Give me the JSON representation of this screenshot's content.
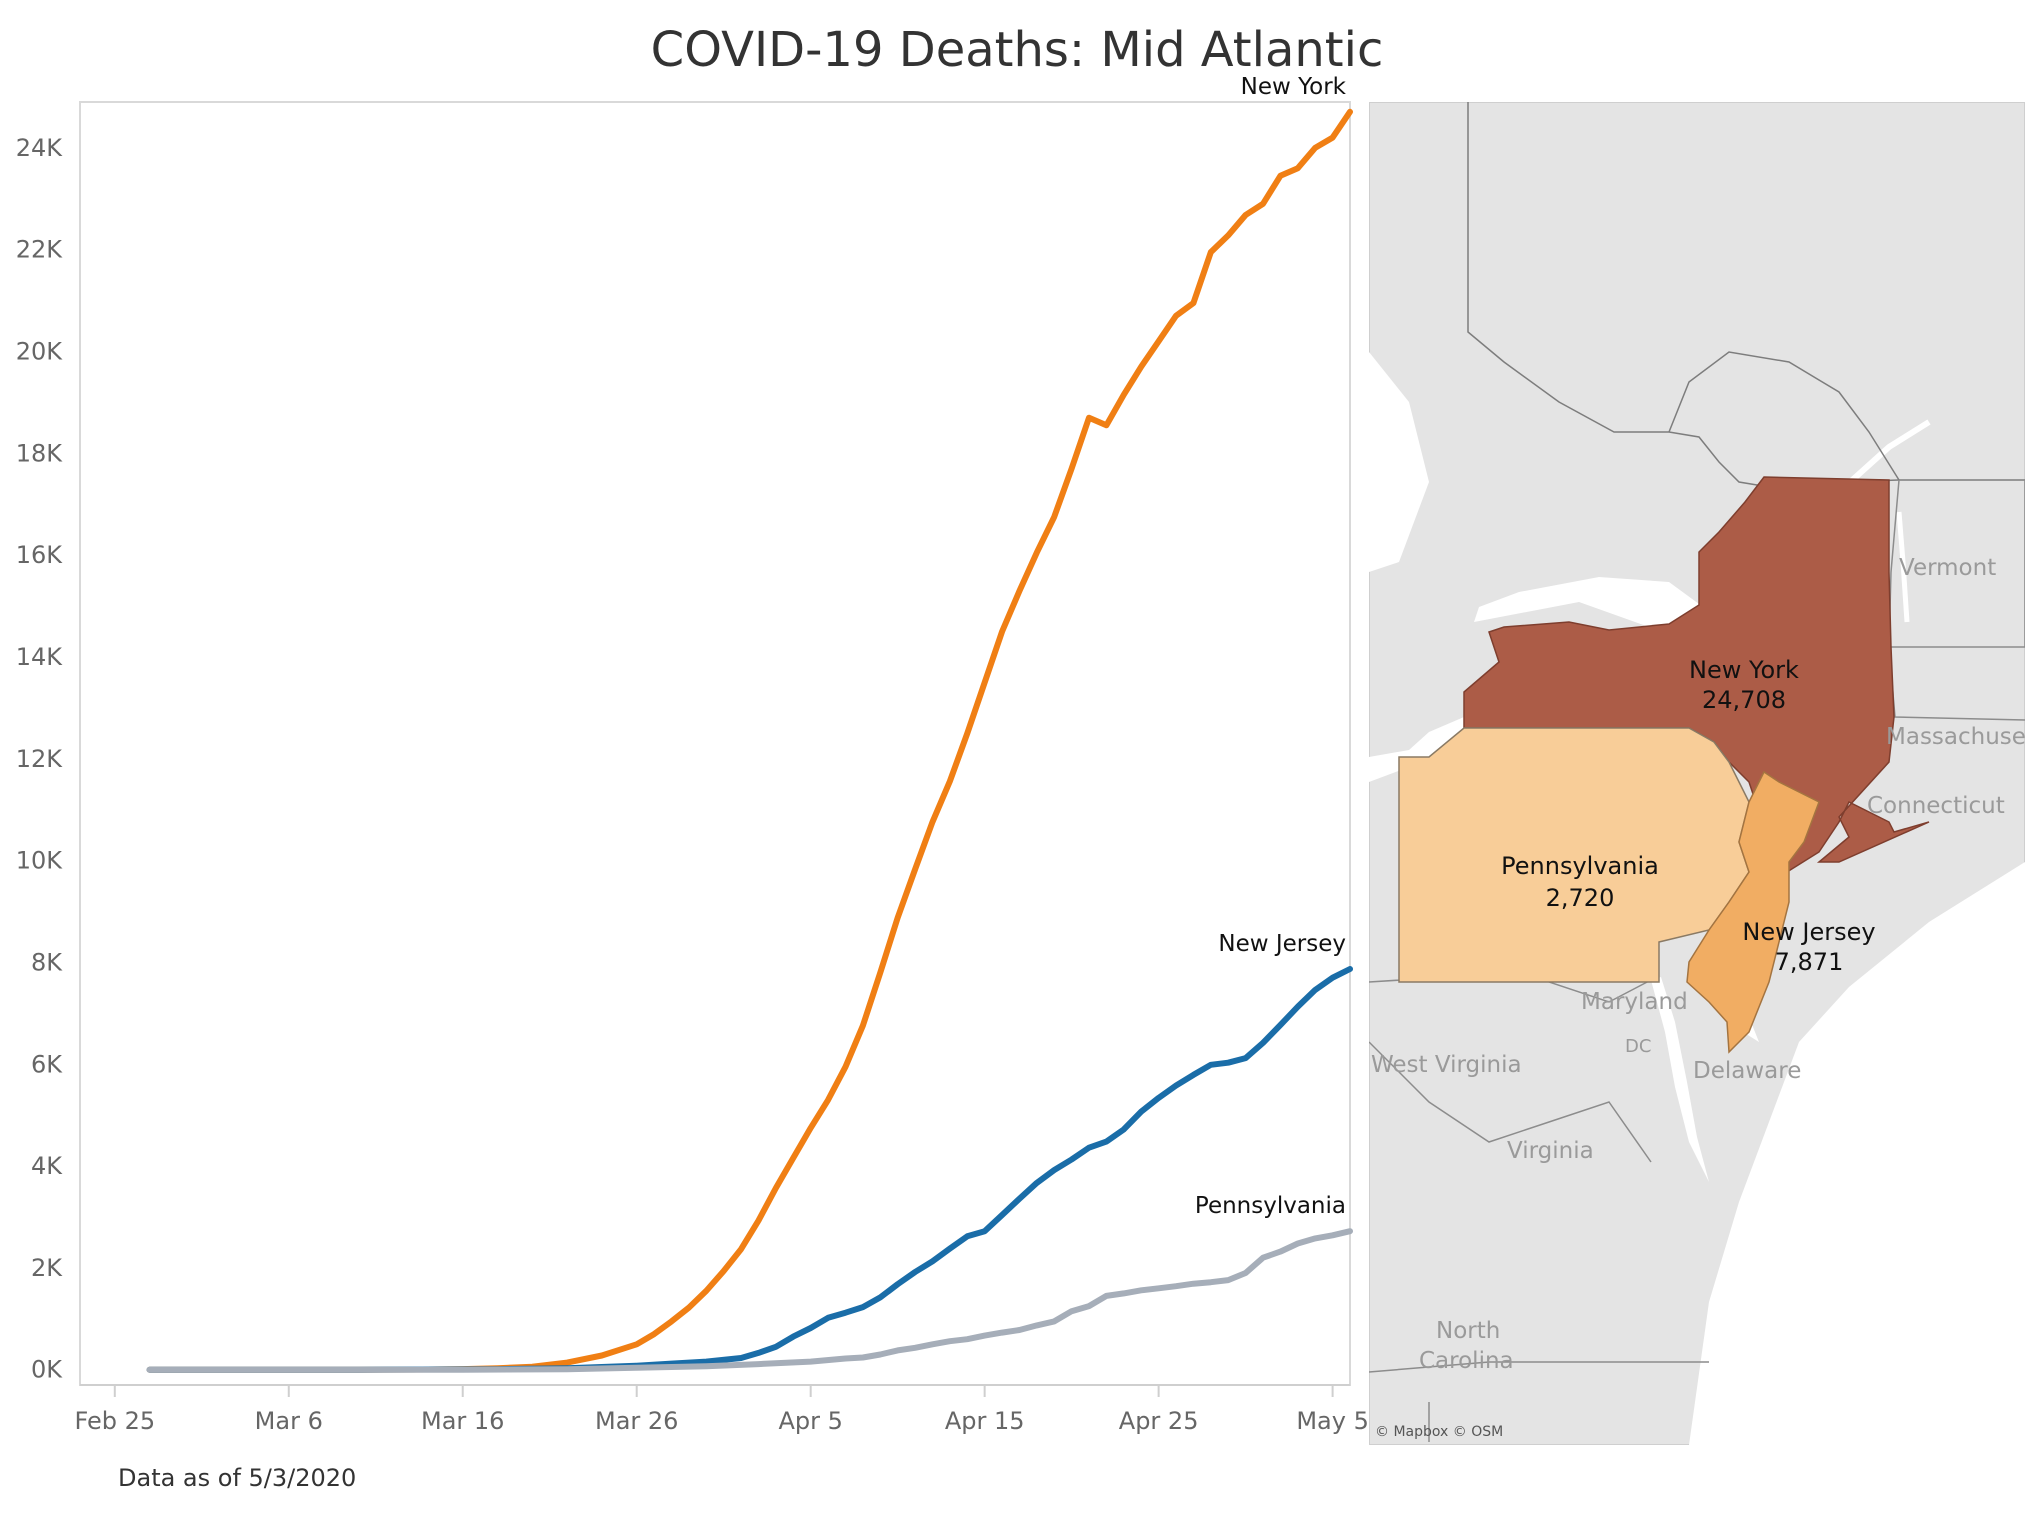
{
  "title": "COVID-19 Deaths: Mid Atlantic",
  "footnote": "Data as of 5/3/2020",
  "colors": {
    "new_york": "#f07f14",
    "new_jersey": "#1a6da8",
    "pennsylvania": "#a6aeb9",
    "map_new_york": "#ac5c47",
    "map_new_jersey": "#f1ad63",
    "map_pennsylvania": "#f8cd98",
    "map_background": "#e4e4e4",
    "map_water": "#ffffff"
  },
  "chart_data": {
    "type": "line",
    "title": "COVID-19 Deaths: Mid Atlantic",
    "xlabel": "",
    "ylabel": "",
    "x_domain": [
      "2020-02-23",
      "2020-05-06"
    ],
    "ylim": [
      -300,
      24900
    ],
    "grid": false,
    "x_ticks": [
      {
        "date": "2020-02-25",
        "label": "Feb 25"
      },
      {
        "date": "2020-03-06",
        "label": "Mar 6"
      },
      {
        "date": "2020-03-16",
        "label": "Mar 16"
      },
      {
        "date": "2020-03-26",
        "label": "Mar 26"
      },
      {
        "date": "2020-04-05",
        "label": "Apr 5"
      },
      {
        "date": "2020-04-15",
        "label": "Apr 15"
      },
      {
        "date": "2020-04-25",
        "label": "Apr 25"
      },
      {
        "date": "2020-05-05",
        "label": "May 5"
      }
    ],
    "y_ticks": [
      {
        "value": 0,
        "label": "0K"
      },
      {
        "value": 2000,
        "label": "2K"
      },
      {
        "value": 4000,
        "label": "4K"
      },
      {
        "value": 6000,
        "label": "6K"
      },
      {
        "value": 8000,
        "label": "8K"
      },
      {
        "value": 10000,
        "label": "10K"
      },
      {
        "value": 12000,
        "label": "12K"
      },
      {
        "value": 14000,
        "label": "14K"
      },
      {
        "value": 16000,
        "label": "16K"
      },
      {
        "value": 18000,
        "label": "18K"
      },
      {
        "value": 20000,
        "label": "20K"
      },
      {
        "value": 22000,
        "label": "22K"
      },
      {
        "value": 24000,
        "label": "24K"
      }
    ],
    "series": [
      {
        "name": "New York",
        "color": "#f07f14",
        "points": [
          [
            "2020-02-27",
            0
          ],
          [
            "2020-03-05",
            0
          ],
          [
            "2020-03-10",
            0
          ],
          [
            "2020-03-14",
            5
          ],
          [
            "2020-03-16",
            12
          ],
          [
            "2020-03-18",
            30
          ],
          [
            "2020-03-20",
            60
          ],
          [
            "2020-03-22",
            140
          ],
          [
            "2020-03-24",
            280
          ],
          [
            "2020-03-26",
            500
          ],
          [
            "2020-03-27",
            700
          ],
          [
            "2020-03-28",
            950
          ],
          [
            "2020-03-29",
            1220
          ],
          [
            "2020-03-30",
            1550
          ],
          [
            "2020-03-31",
            1940
          ],
          [
            "2020-04-01",
            2370
          ],
          [
            "2020-04-02",
            2930
          ],
          [
            "2020-04-03",
            3570
          ],
          [
            "2020-04-04",
            4160
          ],
          [
            "2020-04-05",
            4750
          ],
          [
            "2020-04-06",
            5300
          ],
          [
            "2020-04-07",
            5950
          ],
          [
            "2020-04-08",
            6760
          ],
          [
            "2020-04-09",
            7800
          ],
          [
            "2020-04-10",
            8880
          ],
          [
            "2020-04-11",
            9830
          ],
          [
            "2020-04-12",
            10760
          ],
          [
            "2020-04-13",
            11560
          ],
          [
            "2020-04-14",
            12500
          ],
          [
            "2020-04-15",
            13500
          ],
          [
            "2020-04-16",
            14500
          ],
          [
            "2020-04-17",
            15300
          ],
          [
            "2020-04-18",
            16050
          ],
          [
            "2020-04-19",
            16750
          ],
          [
            "2020-04-20",
            17700
          ],
          [
            "2020-04-21",
            18700
          ],
          [
            "2020-04-22",
            18550
          ],
          [
            "2020-04-23",
            19150
          ],
          [
            "2020-04-24",
            19700
          ],
          [
            "2020-04-25",
            20200
          ],
          [
            "2020-04-26",
            20700
          ],
          [
            "2020-04-27",
            20950
          ],
          [
            "2020-04-28",
            21950
          ],
          [
            "2020-04-29",
            22280
          ],
          [
            "2020-04-30",
            22680
          ],
          [
            "2020-05-01",
            22900
          ],
          [
            "2020-05-02",
            23450
          ],
          [
            "2020-05-03",
            23600
          ],
          [
            "2020-05-04",
            24000
          ],
          [
            "2020-05-05",
            24200
          ],
          [
            "2020-05-06",
            24708
          ]
        ]
      },
      {
        "name": "New Jersey",
        "color": "#1a6da8",
        "points": [
          [
            "2020-02-27",
            0
          ],
          [
            "2020-03-10",
            0
          ],
          [
            "2020-03-18",
            10
          ],
          [
            "2020-03-22",
            30
          ],
          [
            "2020-03-26",
            80
          ],
          [
            "2020-03-28",
            120
          ],
          [
            "2020-03-30",
            160
          ],
          [
            "2020-04-01",
            230
          ],
          [
            "2020-04-02",
            330
          ],
          [
            "2020-04-03",
            450
          ],
          [
            "2020-04-04",
            650
          ],
          [
            "2020-04-05",
            820
          ],
          [
            "2020-04-06",
            1020
          ],
          [
            "2020-04-07",
            1120
          ],
          [
            "2020-04-08",
            1230
          ],
          [
            "2020-04-09",
            1420
          ],
          [
            "2020-04-10",
            1680
          ],
          [
            "2020-04-11",
            1920
          ],
          [
            "2020-04-12",
            2130
          ],
          [
            "2020-04-13",
            2380
          ],
          [
            "2020-04-14",
            2620
          ],
          [
            "2020-04-15",
            2720
          ],
          [
            "2020-04-16",
            3040
          ],
          [
            "2020-04-17",
            3360
          ],
          [
            "2020-04-18",
            3670
          ],
          [
            "2020-04-19",
            3920
          ],
          [
            "2020-04-20",
            4130
          ],
          [
            "2020-04-21",
            4360
          ],
          [
            "2020-04-22",
            4480
          ],
          [
            "2020-04-23",
            4720
          ],
          [
            "2020-04-24",
            5070
          ],
          [
            "2020-04-25",
            5340
          ],
          [
            "2020-04-26",
            5580
          ],
          [
            "2020-04-27",
            5790
          ],
          [
            "2020-04-28",
            5990
          ],
          [
            "2020-04-29",
            6030
          ],
          [
            "2020-04-30",
            6120
          ],
          [
            "2020-05-01",
            6420
          ],
          [
            "2020-05-02",
            6770
          ],
          [
            "2020-05-03",
            7130
          ],
          [
            "2020-05-04",
            7460
          ],
          [
            "2020-05-05",
            7700
          ],
          [
            "2020-05-06",
            7871
          ]
        ]
      },
      {
        "name": "Pennsylvania",
        "color": "#a6aeb9",
        "points": [
          [
            "2020-02-27",
            0
          ],
          [
            "2020-03-16",
            0
          ],
          [
            "2020-03-22",
            10
          ],
          [
            "2020-03-26",
            40
          ],
          [
            "2020-03-30",
            70
          ],
          [
            "2020-04-02",
            110
          ],
          [
            "2020-04-05",
            160
          ],
          [
            "2020-04-07",
            220
          ],
          [
            "2020-04-08",
            240
          ],
          [
            "2020-04-09",
            300
          ],
          [
            "2020-04-10",
            380
          ],
          [
            "2020-04-11",
            430
          ],
          [
            "2020-04-12",
            500
          ],
          [
            "2020-04-13",
            560
          ],
          [
            "2020-04-14",
            600
          ],
          [
            "2020-04-15",
            670
          ],
          [
            "2020-04-16",
            730
          ],
          [
            "2020-04-17",
            780
          ],
          [
            "2020-04-18",
            870
          ],
          [
            "2020-04-19",
            950
          ],
          [
            "2020-04-20",
            1150
          ],
          [
            "2020-04-21",
            1250
          ],
          [
            "2020-04-22",
            1450
          ],
          [
            "2020-04-23",
            1500
          ],
          [
            "2020-04-24",
            1560
          ],
          [
            "2020-04-25",
            1600
          ],
          [
            "2020-04-26",
            1640
          ],
          [
            "2020-04-27",
            1690
          ],
          [
            "2020-04-28",
            1720
          ],
          [
            "2020-04-29",
            1760
          ],
          [
            "2020-04-30",
            1900
          ],
          [
            "2020-05-01",
            2200
          ],
          [
            "2020-05-02",
            2320
          ],
          [
            "2020-05-03",
            2480
          ],
          [
            "2020-05-04",
            2580
          ],
          [
            "2020-05-05",
            2640
          ],
          [
            "2020-05-06",
            2720
          ]
        ]
      }
    ]
  },
  "map": {
    "states": [
      {
        "name": "New York",
        "value": "24,708",
        "fill": "#ac5c47"
      },
      {
        "name": "Pennsylvania",
        "value": "2,720",
        "fill": "#f8cd98"
      },
      {
        "name": "New Jersey",
        "value": "7,871",
        "fill": "#f1ad63"
      }
    ],
    "region_labels": [
      "Vermont",
      "Massachusetts",
      "Connecticut",
      "Maryland",
      "DC",
      "Delaware",
      "Virginia",
      "West Virginia",
      "North Carolina"
    ],
    "credit": "© Mapbox © OSM"
  }
}
